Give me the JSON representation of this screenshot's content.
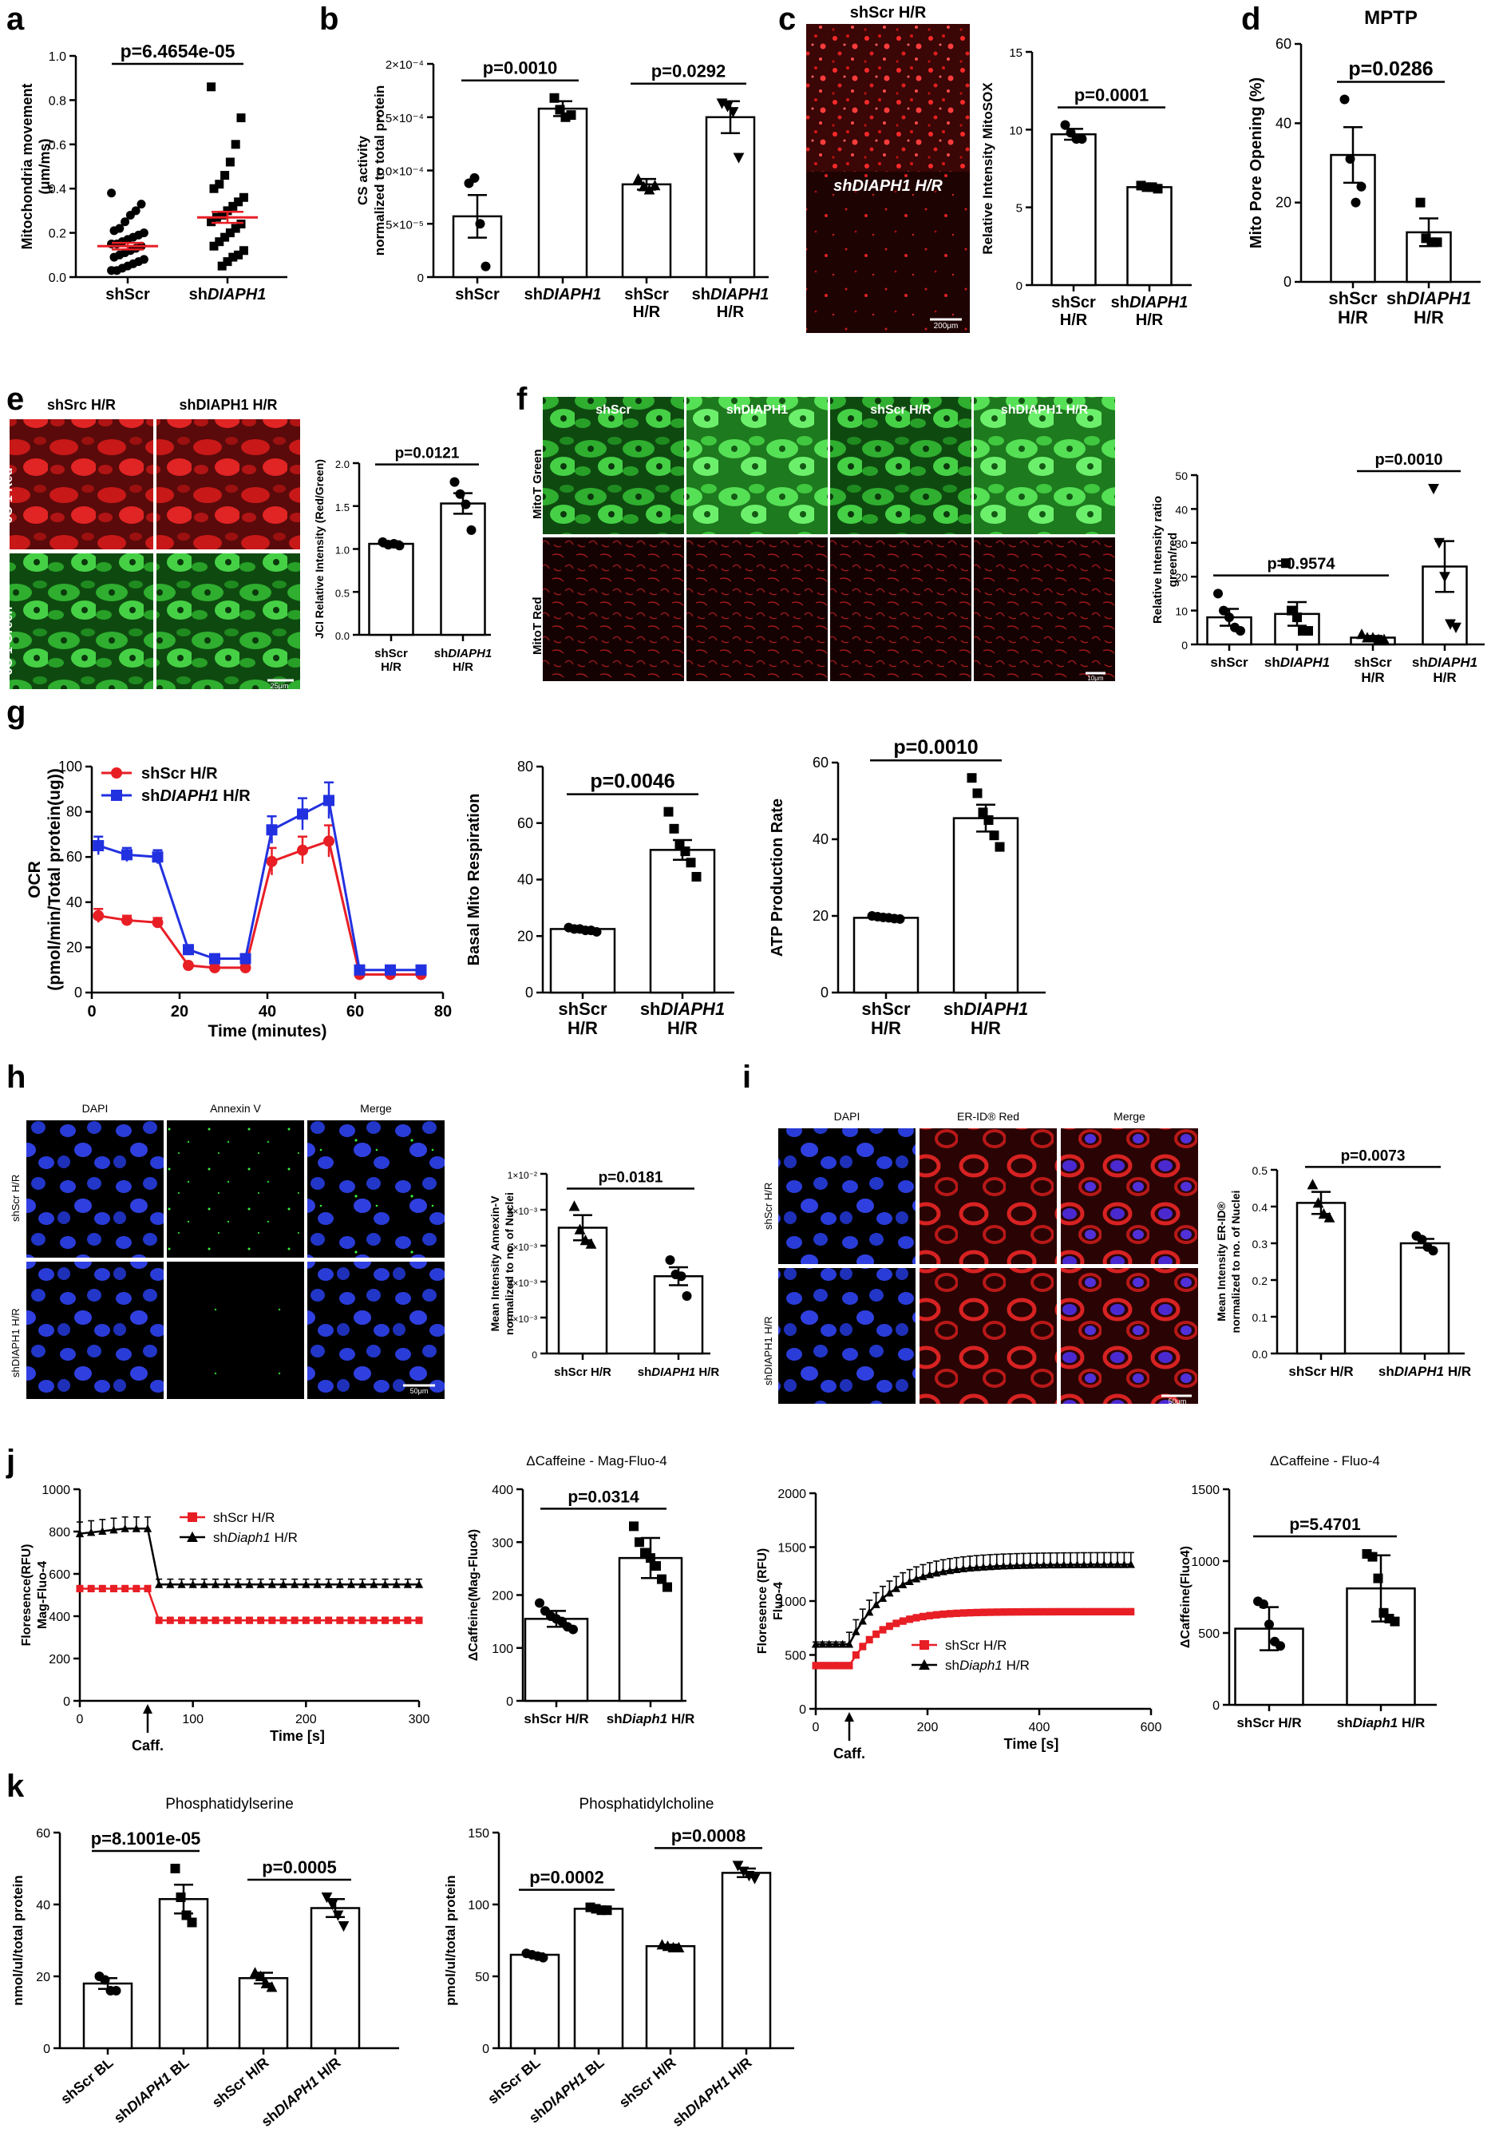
{
  "panel_letters": [
    "a",
    "b",
    "c",
    "d",
    "e",
    "f",
    "g",
    "h",
    "i",
    "j",
    "k"
  ],
  "images": {
    "c": {
      "top_label": "shScr H/R",
      "bottom_label": "shDIAPH1 H/R",
      "scale": "200μm"
    },
    "e": {
      "col_labels": [
        "shSrc H/R",
        "shDIAPH1 H/R"
      ],
      "row_labels": [
        "JC-1 Red",
        "JC-1 Green"
      ],
      "scale": "25μm"
    },
    "f": {
      "col_labels": [
        "shScr",
        "shDIAPH1",
        "shScr H/R",
        "shDIAPH1 H/R"
      ],
      "row_labels": [
        "MitoT Green",
        "MitoT Red"
      ],
      "scale": "10μm"
    },
    "h": {
      "col_labels": [
        "DAPI",
        "Annexin V",
        "Merge"
      ],
      "row_labels": [
        "shScr H/R",
        "shDIAPH1 H/R"
      ],
      "scale": "50μm"
    },
    "i": {
      "col_labels": [
        "DAPI",
        "ER-ID® Red",
        "Merge"
      ],
      "row_labels": [
        "shScr H/R",
        "shDIAPH1 H/R"
      ],
      "scale": "50μm"
    }
  },
  "chart_data": [
    {
      "id": "a",
      "type": "scatter",
      "ylabel": [
        "Mitochondria movement",
        "(μm/ms)"
      ],
      "categories": [
        "shScr",
        "shDIAPH1"
      ],
      "ylim": [
        0,
        1.0
      ],
      "yticks": [
        "0.0",
        "0.2",
        "0.4",
        "0.6",
        "0.8",
        "1.0"
      ],
      "means": [
        0.14,
        0.27
      ],
      "errors": [
        0.015,
        0.025
      ],
      "pvals": [
        {
          "text": "p=6.4654e-05",
          "from": 0,
          "to": 1
        }
      ],
      "points": [
        [
          0.38,
          0.33,
          0.3,
          0.28,
          0.25,
          0.22,
          0.21,
          0.2,
          0.19,
          0.18,
          0.17,
          0.16,
          0.15,
          0.15,
          0.14,
          0.13,
          0.12,
          0.11,
          0.1,
          0.09,
          0.08,
          0.07,
          0.06,
          0.05,
          0.04,
          0.03,
          0.03
        ],
        [
          0.86,
          0.72,
          0.6,
          0.52,
          0.46,
          0.42,
          0.4,
          0.36,
          0.34,
          0.32,
          0.3,
          0.28,
          0.27,
          0.25,
          0.24,
          0.22,
          0.2,
          0.18,
          0.16,
          0.14,
          0.12,
          0.1,
          0.09,
          0.07,
          0.05
        ]
      ]
    },
    {
      "id": "b",
      "type": "bar",
      "ylabel": [
        "CS activity",
        "normalized to total protein"
      ],
      "categories": [
        "shScr",
        "shDIAPH1",
        "shScr\nH/R",
        "shDIAPH1\nH/R"
      ],
      "ylim": [
        0,
        0.0002
      ],
      "yticks": [
        "0",
        "5×10⁻⁵",
        "1.0×10⁻⁴",
        "1.5×10⁻⁴",
        "2×10⁻⁴"
      ],
      "values": [
        5.7e-05,
        0.000158,
        8.7e-05,
        0.00015
      ],
      "errors": [
        2e-05,
        7e-06,
        5e-06,
        1.5e-05
      ],
      "pvals": [
        {
          "text": "p=0.0010",
          "from": 0,
          "to": 1
        },
        {
          "text": "p=0.0292",
          "from": 2,
          "to": 3
        }
      ],
      "points": [
        [
          8.8e-05,
          9.3e-05,
          5e-05,
          1e-05
        ],
        [
          0.000168,
          0.000157,
          0.00015,
          0.000152
        ],
        [
          9.2e-05,
          8.5e-05,
          8.2e-05,
          8.6e-05
        ],
        [
          0.000163,
          0.00016,
          0.000155,
          0.000112
        ]
      ],
      "markers": [
        "circle",
        "square",
        "triangle",
        "triangle-down"
      ]
    },
    {
      "id": "c",
      "type": "bar",
      "ylabel": [
        "Relative Intensity MitoSOX"
      ],
      "categories": [
        "shScr\nH/R",
        "shDIAPH1\nH/R"
      ],
      "ylim": [
        0,
        15
      ],
      "yticks": [
        "0",
        "5",
        "10",
        "15"
      ],
      "values": [
        9.7,
        6.3
      ],
      "errors": [
        0.35,
        0.1
      ],
      "pvals": [
        {
          "text": "p=0.0001",
          "from": 0,
          "to": 1
        }
      ],
      "points": [
        [
          10.3,
          9.8,
          9.4,
          9.4
        ],
        [
          6.4,
          6.3,
          6.3,
          6.2
        ]
      ],
      "markers": [
        "circle",
        "square"
      ]
    },
    {
      "id": "d",
      "type": "bar",
      "title": "MPTP",
      "ylabel": [
        "Mito Pore Opening (%)"
      ],
      "categories": [
        "shScr\nH/R",
        "shDIAPH1\nH/R"
      ],
      "ylim": [
        0,
        60
      ],
      "yticks": [
        "0",
        "20",
        "40",
        "60"
      ],
      "values": [
        32,
        12.5
      ],
      "errors": [
        7,
        3.5
      ],
      "pvals": [
        {
          "text": "p=0.0286",
          "from": 0,
          "to": 1
        }
      ],
      "points": [
        [
          46,
          31,
          20,
          24
        ],
        [
          20,
          11,
          10,
          10
        ]
      ],
      "markers": [
        "circle",
        "square"
      ]
    },
    {
      "id": "e",
      "type": "bar",
      "ylabel": [
        "JCI Relative Intensity (Red/Green)"
      ],
      "categories": [
        "shScr\nH/R",
        "shDIAPH1\nH/R"
      ],
      "ylim": [
        0,
        2.0
      ],
      "yticks": [
        "0.0",
        "0.5",
        "1.0",
        "1.5",
        "2.0"
      ],
      "values": [
        1.06,
        1.53
      ],
      "errors": [
        0.03,
        0.12
      ],
      "pvals": [
        {
          "text": "p=0.0121",
          "from": 0,
          "to": 1
        }
      ],
      "points": [
        [
          1.08,
          1.05,
          1.06,
          1.04
        ],
        [
          1.78,
          1.64,
          1.52,
          1.22
        ]
      ],
      "markers": [
        "circle",
        "circle"
      ]
    },
    {
      "id": "f",
      "type": "bar",
      "ylabel": [
        "Relative Intensity ratio",
        "green/red"
      ],
      "categories": [
        "shScr",
        "shDIAPH1",
        "shScr\nH/R",
        "shDIAPH1\nH/R"
      ],
      "ylim": [
        0,
        50
      ],
      "yticks": [
        "0",
        "10",
        "20",
        "30",
        "40",
        "50"
      ],
      "values": [
        8,
        9,
        2,
        23
      ],
      "errors": [
        2.5,
        3.5,
        0.5,
        7.5
      ],
      "pvals": [
        {
          "text": "p=0.9574",
          "from": 0,
          "to": 2
        },
        {
          "text": "p=0.0010",
          "from": 2,
          "to": 3
        }
      ],
      "points": [
        [
          15,
          10,
          8,
          5,
          4
        ],
        [
          24,
          10,
          8,
          4,
          4
        ],
        [
          3,
          2,
          2,
          1.5,
          1.5
        ],
        [
          46,
          30,
          20,
          6,
          5
        ]
      ],
      "markers": [
        "circle",
        "square",
        "triangle",
        "triangle-down"
      ]
    },
    {
      "id": "g1",
      "type": "line",
      "ylabel": [
        "OCR",
        "(pmol/min/Total protein(ug))"
      ],
      "xlabel": "Time (minutes)",
      "xlim": [
        0,
        80
      ],
      "xticks": [
        "0",
        "20",
        "40",
        "60",
        "80"
      ],
      "ylim": [
        0,
        100
      ],
      "yticks": [
        "0",
        "20",
        "40",
        "60",
        "80",
        "100"
      ],
      "series": [
        {
          "name": "shScr H/R",
          "color": "#e81e25",
          "marker": "circle",
          "x": [
            1.5,
            8,
            15,
            22,
            28,
            35,
            41,
            48,
            54,
            61,
            68,
            75
          ],
          "y": [
            34,
            32,
            31,
            12,
            11,
            11,
            58,
            63,
            67,
            8,
            8,
            8
          ],
          "err": [
            3,
            2,
            2,
            1,
            1,
            1,
            6,
            6,
            7,
            1,
            1,
            1
          ]
        },
        {
          "name": "shDIAPH1 H/R",
          "color": "#2231e0",
          "marker": "square",
          "x": [
            1.5,
            8,
            15,
            22,
            28,
            35,
            41,
            48,
            54,
            61,
            68,
            75
          ],
          "y": [
            65,
            61,
            60,
            19,
            15,
            15,
            72,
            79,
            85,
            10,
            10,
            10
          ],
          "err": [
            4,
            3,
            3,
            1,
            1,
            1,
            6,
            7,
            8,
            1,
            1,
            1
          ]
        }
      ]
    },
    {
      "id": "g2",
      "type": "bar",
      "ylabel": [
        "Basal Mito Respiration"
      ],
      "categories": [
        "shScr\nH/R",
        "shDIAPH1\nH/R"
      ],
      "ylim": [
        0,
        80
      ],
      "yticks": [
        "0",
        "20",
        "40",
        "60",
        "80"
      ],
      "values": [
        22.5,
        50.5
      ],
      "errors": [
        0.5,
        3.5
      ],
      "pvals": [
        {
          "text": "p=0.0046",
          "from": 0,
          "to": 1
        }
      ],
      "points": [
        [
          23,
          22.5,
          22.5,
          22,
          22,
          21.5
        ],
        [
          64,
          58,
          52,
          50,
          46,
          41
        ]
      ],
      "markers": [
        "circle",
        "square"
      ]
    },
    {
      "id": "g3",
      "type": "bar",
      "ylabel": [
        "ATP Production Rate"
      ],
      "categories": [
        "shScr\nH/R",
        "shDIAPH1\nH/R"
      ],
      "ylim": [
        0,
        60
      ],
      "yticks": [
        "0",
        "20",
        "40",
        "60"
      ],
      "values": [
        19.5,
        45.5
      ],
      "errors": [
        0.4,
        3.5
      ],
      "pvals": [
        {
          "text": "p=0.0010",
          "from": 0,
          "to": 1
        }
      ],
      "points": [
        [
          20,
          19.8,
          19.6,
          19.5,
          19.3,
          19.2
        ],
        [
          56,
          52,
          47,
          45,
          41,
          38
        ]
      ],
      "markers": [
        "circle",
        "square"
      ]
    },
    {
      "id": "h",
      "type": "bar",
      "ylabel": [
        "Mean Intensity  Annexin-V",
        "normalized to no. of Nuclei"
      ],
      "categories": [
        "shScr H/R",
        "shDIAPH1 H/R"
      ],
      "ylim": [
        0,
        0.01
      ],
      "yticks": [
        "0",
        "2×10⁻³",
        "4×10⁻³",
        "6×10⁻³",
        "8×10⁻³",
        "1×10⁻²"
      ],
      "values": [
        0.007,
        0.0043
      ],
      "errors": [
        0.0007,
        0.0005
      ],
      "pvals": [
        {
          "text": "p=0.0181",
          "from": 0,
          "to": 1
        }
      ],
      "points": [
        [
          0.0082,
          0.0069,
          0.0063,
          0.0061
        ],
        [
          0.0052,
          0.0044,
          0.0043,
          0.0032
        ]
      ],
      "markers": [
        "triangle",
        "circle"
      ]
    },
    {
      "id": "i",
      "type": "bar",
      "ylabel": [
        "Mean Intensity  ER-ID®",
        "normalized to no. of Nuclei"
      ],
      "categories": [
        "shScr H/R",
        "shDIAPH1 H/R"
      ],
      "ylim": [
        0,
        0.5
      ],
      "yticks": [
        "0.0",
        "0.1",
        "0.2",
        "0.3",
        "0.4",
        "0.5"
      ],
      "values": [
        0.41,
        0.3
      ],
      "errors": [
        0.03,
        0.012
      ],
      "pvals": [
        {
          "text": "p=0.0073",
          "from": 0,
          "to": 1
        }
      ],
      "points": [
        [
          0.46,
          0.41,
          0.38,
          0.37
        ],
        [
          0.32,
          0.31,
          0.29,
          0.28
        ]
      ],
      "markers": [
        "triangle",
        "circle"
      ]
    },
    {
      "id": "j1",
      "type": "line",
      "ylabel": [
        "Floresence(RFU)",
        "Mag-Fluo-4"
      ],
      "xlabel": "Time [s]",
      "xlim": [
        0,
        300
      ],
      "xticks": [
        "0",
        "100",
        "200",
        "300"
      ],
      "ylim": [
        0,
        1000
      ],
      "yticks": [
        "0",
        "200",
        "400",
        "600",
        "800",
        "1000"
      ],
      "annotation": "Caff.",
      "annotation_x": 60,
      "series": [
        {
          "name": "shScr H/R",
          "color": "#e81e25",
          "marker": "square",
          "kind": "j-red"
        },
        {
          "name": "shDiaph1 H/R",
          "color": "#000000",
          "marker": "triangle",
          "kind": "j-black"
        }
      ]
    },
    {
      "id": "j2",
      "type": "bar",
      "title": "ΔCaffeine - Mag-Fluo-4",
      "ylabel": [
        "ΔCaffeine(Mag-Fluo4)"
      ],
      "categories": [
        "shScr H/R",
        "shDiaph1 H/R"
      ],
      "ylim": [
        0,
        400
      ],
      "yticks": [
        "0",
        "100",
        "200",
        "300",
        "400"
      ],
      "values": [
        155,
        270
      ],
      "errors": [
        15,
        38
      ],
      "pvals": [
        {
          "text": "p=0.0314",
          "from": 0,
          "to": 1
        }
      ],
      "points": [
        [
          185,
          170,
          160,
          155,
          150,
          140,
          135
        ],
        [
          330,
          300,
          280,
          270,
          255,
          230,
          215
        ]
      ],
      "markers": [
        "circle",
        "square"
      ]
    },
    {
      "id": "j3",
      "type": "line",
      "ylabel": [
        "Floresence (RFU)",
        "Fluo-4"
      ],
      "xlabel": "Time [s]",
      "xlim": [
        0,
        600
      ],
      "xticks": [
        "0",
        "200",
        "400",
        "600"
      ],
      "ylim": [
        0,
        2000
      ],
      "yticks": [
        "0",
        "500",
        "1000",
        "1500",
        "2000"
      ],
      "annotation": "Caff.",
      "annotation_x": 60,
      "series": [
        {
          "name": "shScr H/R",
          "color": "#e81e25",
          "marker": "square",
          "kind": "f-red"
        },
        {
          "name": "shDiaph1 H/R",
          "color": "#000000",
          "marker": "triangle",
          "kind": "f-black"
        }
      ]
    },
    {
      "id": "j4",
      "type": "bar",
      "title": "ΔCaffeine - Fluo-4",
      "ylabel": [
        "ΔCaffeine(Fluo4)"
      ],
      "categories": [
        "shScr H/R",
        "shDiaph1 H/R"
      ],
      "ylim": [
        0,
        1500
      ],
      "yticks": [
        "0",
        "500",
        "1000",
        "1500"
      ],
      "values": [
        530,
        810
      ],
      "errors": [
        150,
        230
      ],
      "pvals": [
        {
          "text": "p=5.4701",
          "from": 0,
          "to": 1
        }
      ],
      "points": [
        [
          720,
          700,
          560,
          440,
          410
        ],
        [
          1050,
          1030,
          880,
          640,
          600,
          580
        ]
      ],
      "markers": [
        "circle",
        "square"
      ]
    },
    {
      "id": "k1",
      "type": "bar",
      "title": "Phosphatidylserine",
      "ylabel": [
        "nmol/ul/total protein"
      ],
      "categories": [
        "shScr BL",
        "shDIAPH1 BL",
        "shScr H/R",
        "shDIAPH1 H/R"
      ],
      "ylim": [
        0,
        60
      ],
      "yticks": [
        "0",
        "20",
        "40",
        "60"
      ],
      "values": [
        18,
        41.5,
        19.5,
        39
      ],
      "errors": [
        1.5,
        4,
        1.5,
        2.5
      ],
      "pvals": [
        {
          "text": "p=8.1001e-05",
          "from": 0,
          "to": 1
        },
        {
          "text": "p=0.0005",
          "from": 2,
          "to": 3
        }
      ],
      "points": [
        [
          20,
          19,
          16,
          16
        ],
        [
          50,
          42,
          37,
          35
        ],
        [
          21,
          20,
          18,
          17
        ],
        [
          42,
          40,
          37,
          34
        ]
      ],
      "markers": [
        "circle",
        "square",
        "triangle",
        "triangle-down"
      ]
    },
    {
      "id": "k2",
      "type": "bar",
      "title": "Phosphatidylcholine",
      "ylabel": [
        "pmol/ul/total protein"
      ],
      "categories": [
        "shScr BL",
        "shDIAPH1 BL",
        "shScr H/R",
        "shDIAPH1 H/R"
      ],
      "ylim": [
        0,
        150
      ],
      "yticks": [
        "0",
        "50",
        "100",
        "150"
      ],
      "values": [
        65,
        97,
        71,
        122
      ],
      "errors": [
        1,
        1,
        1,
        3
      ],
      "pvals": [
        {
          "text": "p=0.0002",
          "from": 0,
          "to": 1
        },
        {
          "text": "p=0.0008",
          "from": 2,
          "to": 3
        }
      ],
      "points": [
        [
          66,
          65,
          64,
          63
        ],
        [
          98,
          97,
          96,
          96
        ],
        [
          72,
          71,
          70,
          70
        ],
        [
          127,
          123,
          120,
          118
        ]
      ],
      "markers": [
        "circle",
        "square",
        "triangle",
        "triangle-down"
      ]
    }
  ]
}
